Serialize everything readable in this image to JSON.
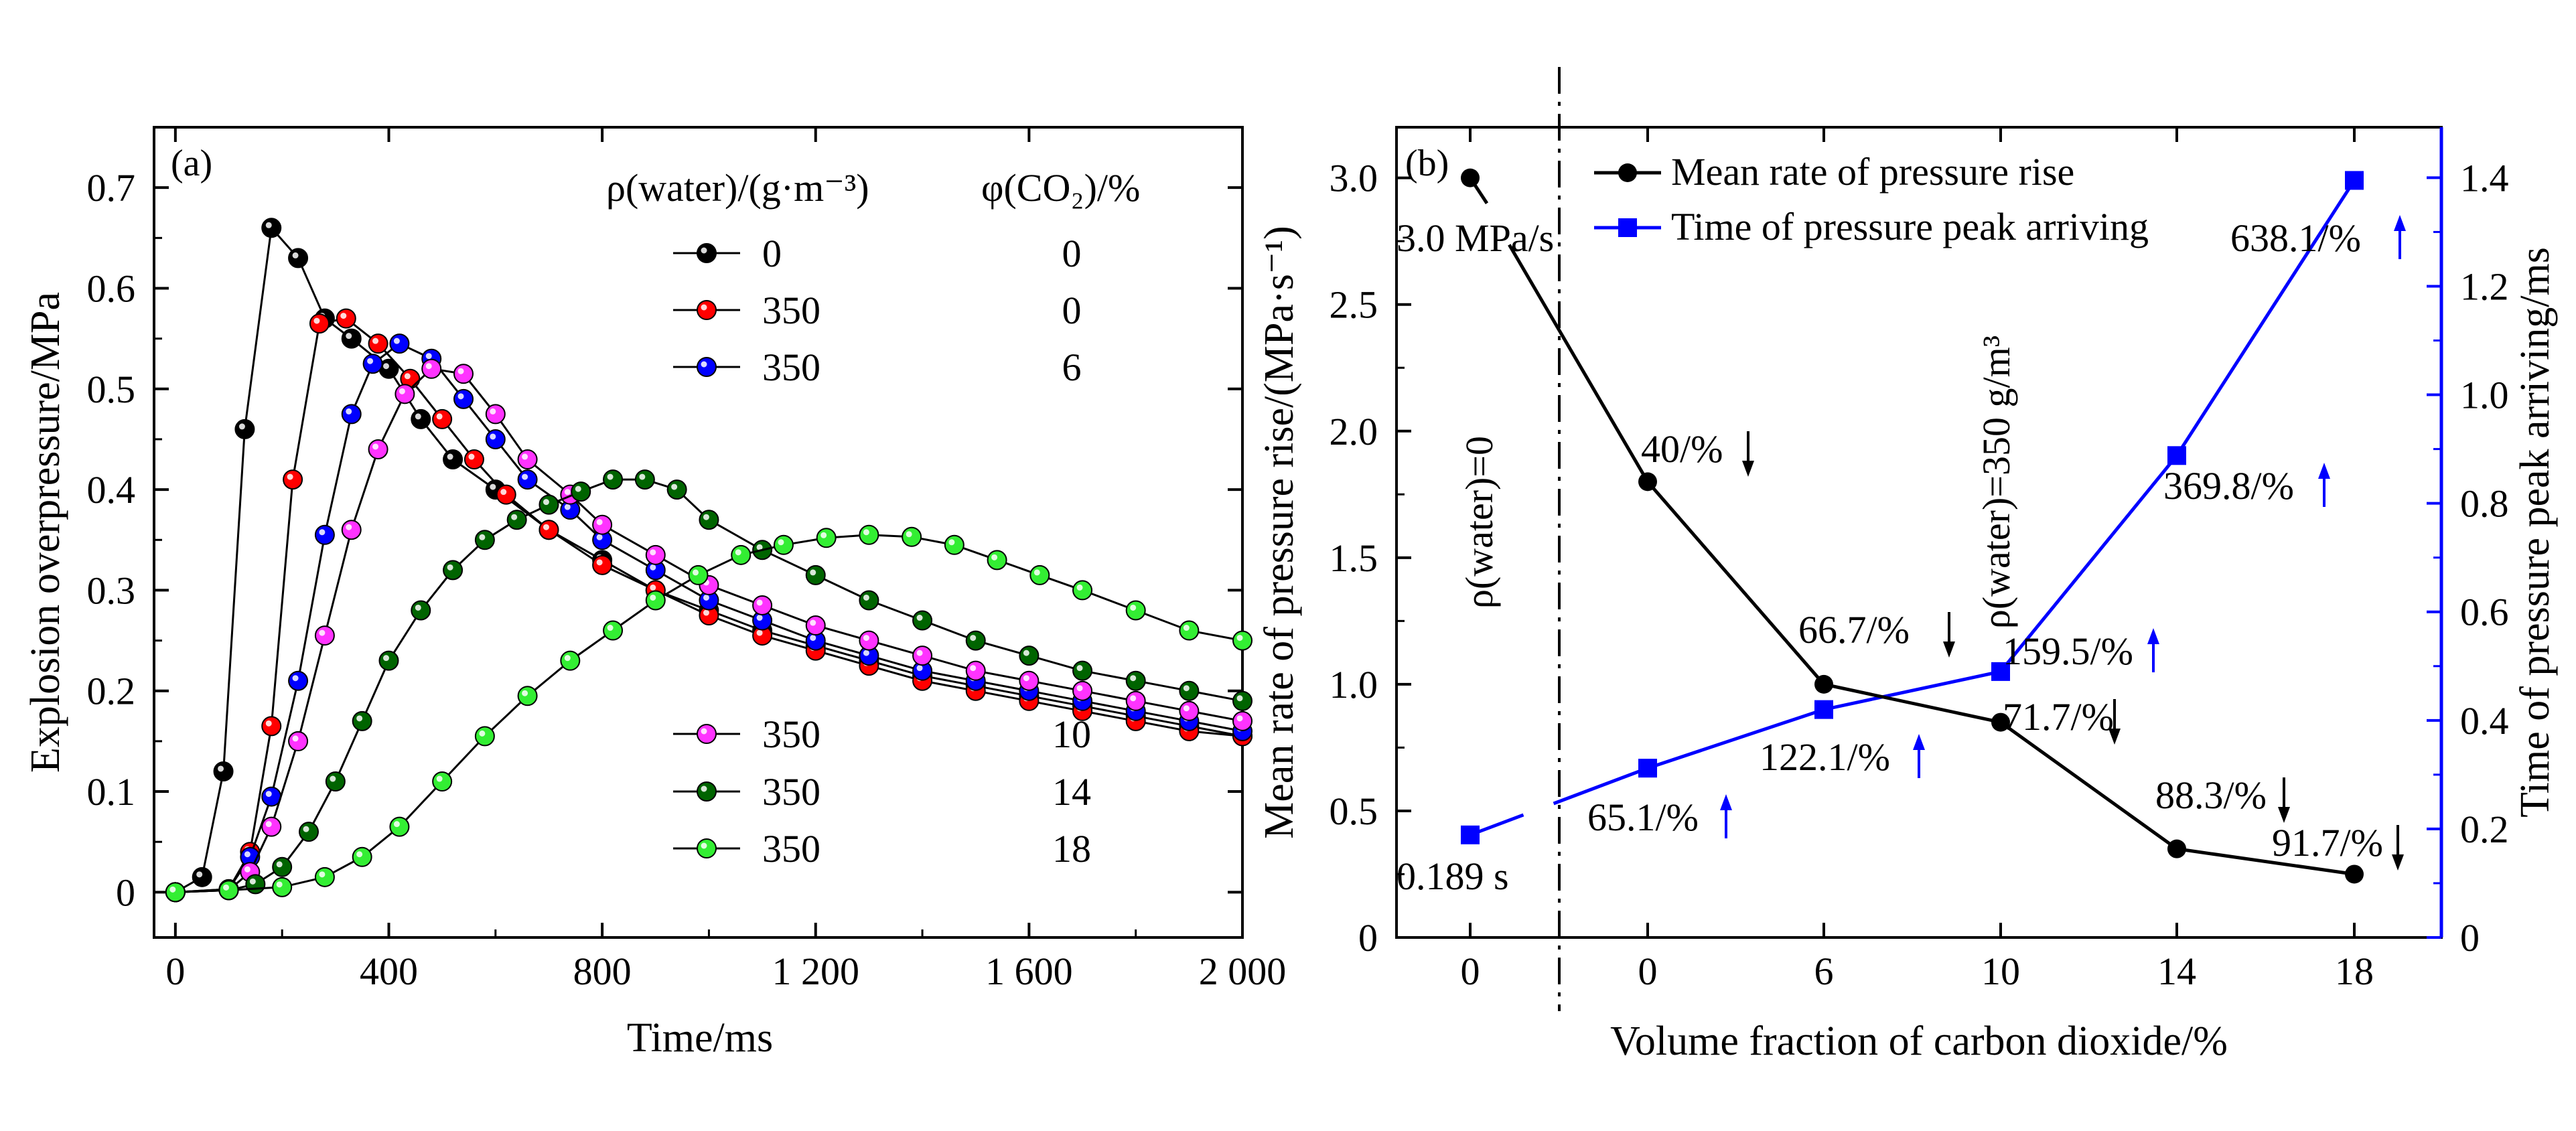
{
  "chart_data": [
    {
      "panel_label": "(a)",
      "type": "line",
      "xlabel": "Time/ms",
      "ylabel": "Explosion overpressure/MPa",
      "xlim": [
        -40,
        2000
      ],
      "ylim": [
        -0.045,
        0.76
      ],
      "xticks": [
        0,
        400,
        800,
        1200,
        1600,
        2000
      ],
      "xtick_labels": [
        "0",
        "400",
        "800",
        "1 200",
        "1 600",
        "2 000"
      ],
      "yticks": [
        0,
        0.1,
        0.2,
        0.3,
        0.4,
        0.5,
        0.6,
        0.7
      ],
      "ytick_labels": [
        "0",
        "0.1",
        "0.2",
        "0.3",
        "0.4",
        "0.5",
        "0.6",
        "0.7"
      ],
      "legend_header_left": "ρ(water)/(g·m⁻³)",
      "legend_header_right": "φ(CO₂)/%",
      "legend_placement": "top-right and middle",
      "series": [
        {
          "water": "0",
          "co2": "0",
          "color": "#000000",
          "points": [
            [
              0,
              0
            ],
            [
              50,
              0.015
            ],
            [
              90,
              0.12
            ],
            [
              130,
              0.46
            ],
            [
              180,
              0.66
            ],
            [
              230,
              0.63
            ],
            [
              280,
              0.57
            ],
            [
              330,
              0.55
            ],
            [
              400,
              0.52
            ],
            [
              460,
              0.47
            ],
            [
              520,
              0.43
            ],
            [
              600,
              0.4
            ],
            [
              700,
              0.36
            ],
            [
              800,
              0.33
            ],
            [
              900,
              0.3
            ],
            [
              1000,
              0.28
            ],
            [
              1100,
              0.26
            ],
            [
              1200,
              0.245
            ],
            [
              1300,
              0.23
            ],
            [
              1400,
              0.215
            ],
            [
              1500,
              0.205
            ],
            [
              1600,
              0.195
            ],
            [
              1700,
              0.185
            ],
            [
              1800,
              0.175
            ],
            [
              1900,
              0.165
            ],
            [
              2000,
              0.155
            ]
          ]
        },
        {
          "water": "350",
          "co2": "0",
          "color": "#ff0000",
          "points": [
            [
              0,
              0
            ],
            [
              100,
              0.003
            ],
            [
              140,
              0.04
            ],
            [
              180,
              0.165
            ],
            [
              220,
              0.41
            ],
            [
              270,
              0.565
            ],
            [
              320,
              0.57
            ],
            [
              380,
              0.545
            ],
            [
              440,
              0.51
            ],
            [
              500,
              0.47
            ],
            [
              560,
              0.43
            ],
            [
              620,
              0.395
            ],
            [
              700,
              0.36
            ],
            [
              800,
              0.325
            ],
            [
              900,
              0.3
            ],
            [
              1000,
              0.275
            ],
            [
              1100,
              0.255
            ],
            [
              1200,
              0.24
            ],
            [
              1300,
              0.225
            ],
            [
              1400,
              0.21
            ],
            [
              1500,
              0.2
            ],
            [
              1600,
              0.19
            ],
            [
              1700,
              0.18
            ],
            [
              1800,
              0.17
            ],
            [
              1900,
              0.16
            ],
            [
              2000,
              0.155
            ]
          ]
        },
        {
          "water": "350",
          "co2": "6",
          "color": "#0000ff",
          "points": [
            [
              0,
              0
            ],
            [
              100,
              0.003
            ],
            [
              140,
              0.035
            ],
            [
              180,
              0.095
            ],
            [
              230,
              0.21
            ],
            [
              280,
              0.355
            ],
            [
              330,
              0.475
            ],
            [
              370,
              0.525
            ],
            [
              420,
              0.545
            ],
            [
              480,
              0.53
            ],
            [
              540,
              0.49
            ],
            [
              600,
              0.45
            ],
            [
              660,
              0.41
            ],
            [
              740,
              0.38
            ],
            [
              800,
              0.35
            ],
            [
              900,
              0.32
            ],
            [
              1000,
              0.29
            ],
            [
              1100,
              0.27
            ],
            [
              1200,
              0.25
            ],
            [
              1300,
              0.235
            ],
            [
              1400,
              0.22
            ],
            [
              1500,
              0.21
            ],
            [
              1600,
              0.2
            ],
            [
              1700,
              0.19
            ],
            [
              1800,
              0.18
            ],
            [
              1900,
              0.17
            ],
            [
              2000,
              0.16
            ]
          ]
        },
        {
          "water": "350",
          "co2": "10",
          "color": "#ff33ff",
          "points": [
            [
              0,
              0
            ],
            [
              100,
              0.002
            ],
            [
              140,
              0.02
            ],
            [
              180,
              0.065
            ],
            [
              230,
              0.15
            ],
            [
              280,
              0.255
            ],
            [
              330,
              0.36
            ],
            [
              380,
              0.44
            ],
            [
              430,
              0.495
            ],
            [
              480,
              0.52
            ],
            [
              540,
              0.515
            ],
            [
              600,
              0.475
            ],
            [
              660,
              0.43
            ],
            [
              740,
              0.395
            ],
            [
              800,
              0.365
            ],
            [
              900,
              0.335
            ],
            [
              1000,
              0.305
            ],
            [
              1100,
              0.285
            ],
            [
              1200,
              0.265
            ],
            [
              1300,
              0.25
            ],
            [
              1400,
              0.235
            ],
            [
              1500,
              0.22
            ],
            [
              1600,
              0.21
            ],
            [
              1700,
              0.2
            ],
            [
              1800,
              0.19
            ],
            [
              1900,
              0.18
            ],
            [
              2000,
              0.17
            ]
          ]
        },
        {
          "water": "350",
          "co2": "14",
          "color": "#006400",
          "points": [
            [
              0,
              0
            ],
            [
              100,
              0.002
            ],
            [
              150,
              0.008
            ],
            [
              200,
              0.025
            ],
            [
              250,
              0.06
            ],
            [
              300,
              0.11
            ],
            [
              350,
              0.17
            ],
            [
              400,
              0.23
            ],
            [
              460,
              0.28
            ],
            [
              520,
              0.32
            ],
            [
              580,
              0.35
            ],
            [
              640,
              0.37
            ],
            [
              700,
              0.385
            ],
            [
              760,
              0.398
            ],
            [
              820,
              0.41
            ],
            [
              880,
              0.41
            ],
            [
              940,
              0.4
            ],
            [
              1000,
              0.37
            ],
            [
              1100,
              0.34
            ],
            [
              1200,
              0.315
            ],
            [
              1300,
              0.29
            ],
            [
              1400,
              0.27
            ],
            [
              1500,
              0.25
            ],
            [
              1600,
              0.235
            ],
            [
              1700,
              0.22
            ],
            [
              1800,
              0.21
            ],
            [
              1900,
              0.2
            ],
            [
              2000,
              0.19
            ]
          ]
        },
        {
          "water": "350",
          "co2": "18",
          "color": "#33ee33",
          "points": [
            [
              0,
              0
            ],
            [
              100,
              0.002
            ],
            [
              200,
              0.005
            ],
            [
              280,
              0.015
            ],
            [
              350,
              0.035
            ],
            [
              420,
              0.065
            ],
            [
              500,
              0.11
            ],
            [
              580,
              0.155
            ],
            [
              660,
              0.195
            ],
            [
              740,
              0.23
            ],
            [
              820,
              0.26
            ],
            [
              900,
              0.29
            ],
            [
              980,
              0.315
            ],
            [
              1060,
              0.335
            ],
            [
              1140,
              0.345
            ],
            [
              1220,
              0.352
            ],
            [
              1300,
              0.355
            ],
            [
              1380,
              0.353
            ],
            [
              1460,
              0.345
            ],
            [
              1540,
              0.33
            ],
            [
              1620,
              0.315
            ],
            [
              1700,
              0.3
            ],
            [
              1800,
              0.28
            ],
            [
              1900,
              0.26
            ],
            [
              2000,
              0.25
            ]
          ]
        }
      ]
    },
    {
      "panel_label": "(b)",
      "type": "line",
      "xlabel": "Volume fraction of carbon dioxide/%",
      "ylabel_left": "Mean rate of pressure rise/(MPa·s⁻¹)",
      "ylabel_right": "Time of pressure peak arriving/ms",
      "categories": [
        "0",
        "0",
        "6",
        "10",
        "14",
        "18"
      ],
      "ylim_left": [
        0,
        3.2
      ],
      "ylim_right": [
        0,
        1.493
      ],
      "yticks_left": [
        "0",
        "0.5",
        "1.0",
        "1.5",
        "2.0",
        "2.5",
        "3.0"
      ],
      "yticks_right": [
        "0",
        "0.2",
        "0.4",
        "0.6",
        "0.8",
        "1.0",
        "1.2",
        "1.4"
      ],
      "region_labels": [
        "ρ(water)=0",
        "ρ(water)=350 g/m³"
      ],
      "legend_placement": "top-left",
      "series": [
        {
          "name": "Mean rate of pressure rise",
          "color": "#000000",
          "marker": "circle",
          "axis": "left",
          "values": [
            3.0,
            1.8,
            1.0,
            0.85,
            0.35,
            0.25
          ],
          "annotations": [
            "3.0 MPa/s",
            "40/%",
            "66.7/%",
            "71.7/%",
            "88.3/%",
            "91.7/%"
          ]
        },
        {
          "name": "Time of pressure peak arriving",
          "color": "#0000ff",
          "marker": "square",
          "axis": "right",
          "values": [
            0.189,
            0.312,
            0.42,
            0.49,
            0.888,
            1.395
          ],
          "annotations": [
            "0.189 s",
            "65.1/%",
            "122.1/%",
            "159.5/%",
            "369.8/%",
            "638.1/%"
          ]
        }
      ]
    }
  ]
}
